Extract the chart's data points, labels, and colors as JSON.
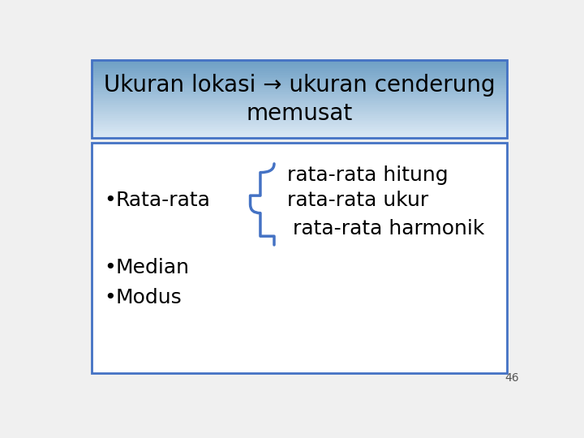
{
  "title_line1": "Ukuran lokasi → ukuran cenderung",
  "title_line2": "memusat",
  "title_bg_top": "#6e9fc5",
  "title_bg_bottom": "#ddeaf5",
  "title_text_color": "#000000",
  "content_box_color": "#ffffff",
  "content_border_color": "#4472c4",
  "title_border_color": "#4472c4",
  "bullet_color": "#000000",
  "bullets": [
    "Rata-rata",
    "Median",
    "Modus"
  ],
  "sub_items": [
    "rata-rata hitung",
    "rata-rata ukur",
    "rata-rata harmonik"
  ],
  "brace_color": "#4472c4",
  "page_number": "46",
  "bg_color": "#f0f0f0",
  "title_fontsize": 20,
  "content_fontsize": 18
}
